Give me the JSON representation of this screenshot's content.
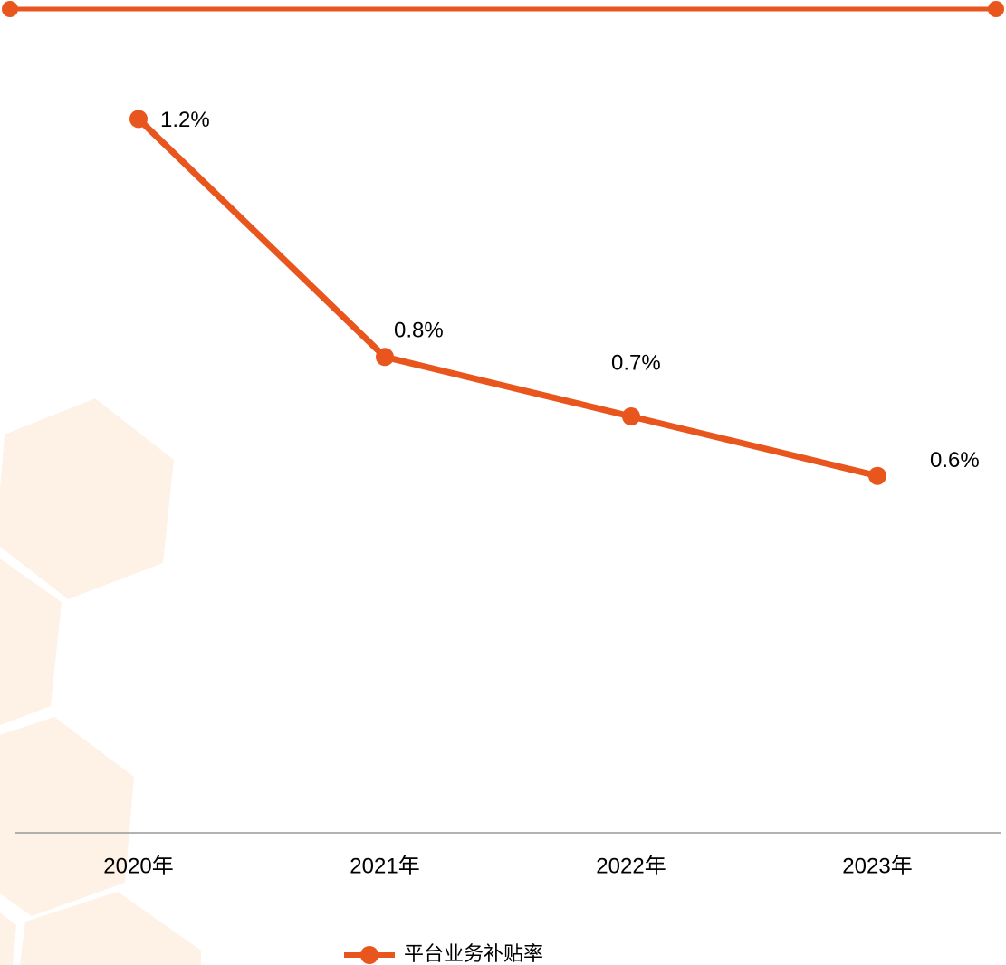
{
  "chart_data": {
    "type": "line",
    "categories": [
      "2020年",
      "2021年",
      "2022年",
      "2023年"
    ],
    "series": [
      {
        "name": "平台业务补贴率",
        "color": "#e8561e",
        "values": [
          1.2,
          0.8,
          0.7,
          0.6
        ],
        "value_labels": [
          "1.2%",
          "0.8%",
          "0.7%",
          "0.6%"
        ]
      }
    ],
    "ylim": [
      0,
      1.4
    ],
    "grid": false,
    "legend": "bottom"
  }
}
